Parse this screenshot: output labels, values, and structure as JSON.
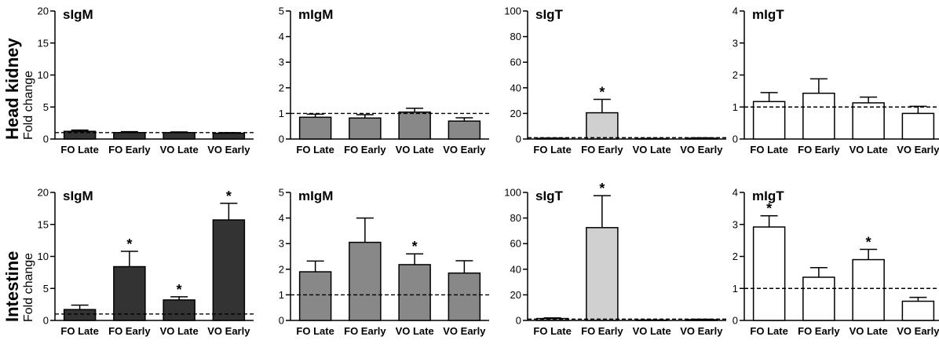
{
  "figure": {
    "rows": [
      {
        "tissue": "Head kidney",
        "ylabel": "Fold change"
      },
      {
        "tissue": "Intestine",
        "ylabel": "Fold change"
      }
    ]
  },
  "colors": {
    "sIgM": "#333333",
    "mIgM": "#888888",
    "sIgT": "#d0d0d0",
    "mIgT": "#ffffff",
    "edge": "#000000"
  },
  "chart_data": [
    {
      "type": "bar",
      "row": 0,
      "col": 0,
      "title": "sIgM",
      "color_key": "sIgM",
      "categories": [
        "FO Late",
        "FO Early",
        "VO Late",
        "VO Early"
      ],
      "values": [
        1.2,
        1.0,
        1.0,
        0.9
      ],
      "errors": [
        0.2,
        0.15,
        0.1,
        0.1
      ],
      "significant": [
        false,
        false,
        false,
        false
      ],
      "star": "*",
      "ylim": [
        0,
        20
      ],
      "yticks": [
        0,
        5,
        10,
        15,
        20
      ],
      "baseline": 1
    },
    {
      "type": "bar",
      "row": 0,
      "col": 1,
      "title": "mIgM",
      "color_key": "mIgM",
      "categories": [
        "FO Late",
        "FO Early",
        "VO Late",
        "VO Early"
      ],
      "values": [
        0.85,
        0.82,
        1.05,
        0.7
      ],
      "errors": [
        0.12,
        0.13,
        0.15,
        0.13
      ],
      "significant": [
        false,
        false,
        false,
        false
      ],
      "star": "*",
      "ylim": [
        0,
        5
      ],
      "yticks": [
        0,
        1,
        2,
        3,
        4,
        5
      ],
      "baseline": 1
    },
    {
      "type": "bar",
      "row": 0,
      "col": 2,
      "title": "sIgT",
      "color_key": "sIgT",
      "categories": [
        "FO Late",
        "FO Early",
        "VO Late",
        "VO Early"
      ],
      "values": [
        0.5,
        20.5,
        0.3,
        0.6
      ],
      "errors": [
        0.2,
        10.5,
        0.1,
        0.3
      ],
      "significant": [
        false,
        true,
        false,
        false
      ],
      "star": "*",
      "ylim": [
        0,
        100
      ],
      "yticks": [
        0,
        20,
        40,
        60,
        80,
        100
      ],
      "baseline": 1
    },
    {
      "type": "bar",
      "row": 0,
      "col": 3,
      "title": "mIgT",
      "color_key": "mIgT",
      "categories": [
        "FO Late",
        "FO Early",
        "VO Late",
        "VO Early"
      ],
      "values": [
        1.17,
        1.43,
        1.13,
        0.8
      ],
      "errors": [
        0.28,
        0.45,
        0.18,
        0.22
      ],
      "significant": [
        false,
        false,
        false,
        false
      ],
      "star": "*",
      "ylim": [
        0,
        4
      ],
      "yticks": [
        0,
        1,
        2,
        3,
        4
      ],
      "baseline": 1
    },
    {
      "type": "bar",
      "row": 1,
      "col": 0,
      "title": "sIgM",
      "color_key": "sIgM",
      "categories": [
        "FO Late",
        "FO Early",
        "VO Late",
        "VO Early"
      ],
      "values": [
        1.7,
        8.4,
        3.2,
        15.7
      ],
      "errors": [
        0.7,
        2.4,
        0.5,
        2.6
      ],
      "significant": [
        false,
        true,
        true,
        true
      ],
      "star": "*",
      "ylim": [
        0,
        20
      ],
      "yticks": [
        0,
        5,
        10,
        15,
        20
      ],
      "baseline": 1
    },
    {
      "type": "bar",
      "row": 1,
      "col": 1,
      "title": "mIgM",
      "color_key": "mIgM",
      "categories": [
        "FO Late",
        "FO Early",
        "VO Late",
        "VO Early"
      ],
      "values": [
        1.9,
        3.05,
        2.18,
        1.85
      ],
      "errors": [
        0.42,
        0.95,
        0.42,
        0.48
      ],
      "significant": [
        false,
        false,
        true,
        false
      ],
      "star": "*",
      "ylim": [
        0,
        5
      ],
      "yticks": [
        0,
        1,
        2,
        3,
        4,
        5
      ],
      "baseline": 1
    },
    {
      "type": "bar",
      "row": 1,
      "col": 2,
      "title": "sIgT",
      "color_key": "sIgT",
      "categories": [
        "FO Late",
        "FO Early",
        "VO Late",
        "VO Early"
      ],
      "values": [
        1.5,
        72.5,
        0.3,
        0.6
      ],
      "errors": [
        0.5,
        25.0,
        0.1,
        0.3
      ],
      "significant": [
        false,
        true,
        false,
        false
      ],
      "star": "*",
      "ylim": [
        0,
        100
      ],
      "yticks": [
        0,
        20,
        40,
        60,
        80,
        100
      ],
      "baseline": 1
    },
    {
      "type": "bar",
      "row": 1,
      "col": 3,
      "title": "mIgT",
      "color_key": "mIgT",
      "categories": [
        "FO Late",
        "FO Early",
        "VO Late",
        "VO Early"
      ],
      "values": [
        2.92,
        1.35,
        1.9,
        0.6
      ],
      "errors": [
        0.35,
        0.3,
        0.32,
        0.12
      ],
      "significant": [
        true,
        false,
        true,
        false
      ],
      "star": "*",
      "ylim": [
        0,
        4
      ],
      "yticks": [
        0,
        1,
        2,
        3,
        4
      ],
      "baseline": 1
    }
  ]
}
